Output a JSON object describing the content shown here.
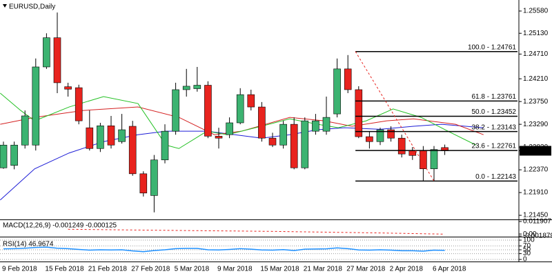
{
  "chart_data": [
    {
      "type": "candlestick",
      "title": "EURUSD,Daily",
      "categories": [
        "9 Feb 2018",
        null,
        null,
        null,
        "15 Feb 2018",
        null,
        null,
        null,
        "21 Feb 2018",
        null,
        null,
        null,
        "27 Feb 2018",
        null,
        null,
        null,
        "5 Mar 2018",
        null,
        null,
        null,
        "9 Mar 2018",
        null,
        null,
        null,
        "15 Mar 2018",
        null,
        null,
        null,
        "21 Mar 2018",
        null,
        null,
        null,
        "27 Mar 2018",
        null,
        null,
        null,
        "2 Apr 2018",
        null,
        null,
        null,
        "6 Apr 2018",
        null
      ],
      "open": [
        1.2241,
        1.2246,
        1.2287,
        1.2287,
        1.2445,
        1.2504,
        1.2405,
        1.2403,
        1.2322,
        1.228,
        1.2326,
        1.2294,
        1.2325,
        1.2229,
        1.2185,
        1.2257,
        1.2315,
        1.2399,
        1.2401,
        1.2408,
        1.2305,
        1.2308,
        1.2332,
        1.2389,
        1.2364,
        1.2301,
        1.2287,
        1.2329,
        1.2241,
        1.2315,
        1.2315,
        1.235,
        1.2441,
        1.2399,
        1.2304,
        1.2294,
        1.2318,
        1.2301,
        1.2276,
        1.2276,
        1.2239,
        1.2282
      ],
      "high": [
        1.2294,
        1.2294,
        1.2357,
        1.2462,
        1.2513,
        1.2555,
        1.2413,
        1.2409,
        1.2357,
        1.2332,
        1.2346,
        1.235,
        1.2336,
        1.2234,
        1.2267,
        1.2329,
        1.2413,
        1.2441,
        1.2445,
        1.2416,
        1.2322,
        1.2343,
        1.2402,
        1.2399,
        1.2374,
        1.2312,
        1.2336,
        1.2343,
        1.2343,
        1.235,
        1.2385,
        1.2462,
        1.2469,
        1.2406,
        1.2315,
        1.2322,
        1.2325,
        1.2308,
        1.2283,
        1.2285,
        1.2285,
        1.2288
      ],
      "low": [
        1.2239,
        1.2238,
        1.228,
        1.2276,
        1.2441,
        1.2392,
        1.2385,
        1.2329,
        1.2276,
        1.2273,
        1.228,
        1.229,
        1.2225,
        1.2183,
        1.2151,
        1.225,
        1.2308,
        1.2385,
        1.2395,
        1.2301,
        1.228,
        1.2301,
        1.2329,
        1.2357,
        1.2294,
        1.2283,
        1.228,
        1.2238,
        1.2238,
        1.2308,
        1.2308,
        1.2343,
        1.2392,
        1.2301,
        1.228,
        1.2287,
        1.2294,
        1.2262,
        1.2257,
        1.2215,
        1.2215,
        1.2267
      ],
      "close": [
        1.2287,
        1.2287,
        1.2346,
        1.2445,
        1.2504,
        1.2413,
        1.24,
        1.2336,
        1.228,
        1.2326,
        1.2287,
        1.2318,
        1.2229,
        1.219,
        1.2257,
        1.2315,
        1.2399,
        1.2406,
        1.2408,
        1.2305,
        1.2301,
        1.2332,
        1.2389,
        1.2364,
        1.2301,
        1.2287,
        1.2329,
        1.2241,
        1.2336,
        1.2336,
        1.2343,
        1.2441,
        1.2399,
        1.2304,
        1.2294,
        1.2318,
        1.2301,
        1.2269,
        1.2266,
        1.2239,
        1.2278,
        1.22755
      ],
      "up_color": "#3cb371",
      "down_color": "#e8231e",
      "ylim": [
        1.21367,
        1.25775
      ],
      "yticks": [
        {
          "value": 1.2558,
          "label": "1.25580"
        },
        {
          "value": 1.2513,
          "label": "1.25130"
        },
        {
          "value": 1.2471,
          "label": "1.24710"
        },
        {
          "value": 1.2421,
          "label": "1.24210"
        },
        {
          "value": 1.2375,
          "label": "1.23750"
        },
        {
          "value": 1.2329,
          "label": "1.23290"
        },
        {
          "value": 1.2283,
          "label": "1.22830"
        },
        {
          "value": 1.2237,
          "label": "1.22370"
        },
        {
          "value": 1.2191,
          "label": "1.21910"
        },
        {
          "value": 1.2145,
          "label": "1.21450"
        }
      ],
      "last_price": 1.22755,
      "overlays": [
        {
          "color": "#1c1cd6",
          "x": [
            -0.3,
            2.9,
            6.1,
            9.3,
            12.5,
            15.1,
            18.9,
            21.5,
            24.0,
            26.6,
            29.2,
            31.7,
            35.0,
            38.1,
            40.7,
            44.6
          ],
          "values": [
            1.2176,
            1.2239,
            1.2271,
            1.2294,
            1.2308,
            1.2315,
            1.2315,
            1.2308,
            1.2301,
            1.2308,
            1.2318,
            1.2322,
            1.2319,
            1.2325,
            1.2329,
            1.2322
          ]
        },
        {
          "color": "#d42020",
          "x": [
            -0.3,
            2.9,
            7.4,
            12.5,
            16.3,
            19.6,
            22.1,
            26.6,
            29.8,
            32.4,
            35.6,
            38.1,
            42.0,
            44.6
          ],
          "values": [
            1.2329,
            1.2343,
            1.2357,
            1.2364,
            1.2343,
            1.2308,
            1.2315,
            1.2343,
            1.2336,
            1.2325,
            1.2336,
            1.234,
            1.2329,
            1.2308
          ]
        },
        {
          "color": "#22c022",
          "x": [
            -0.3,
            1.6,
            2.9,
            6.1,
            9.3,
            12.5,
            15.1,
            16.3,
            18.9,
            20.8,
            23.4,
            26.6,
            29.2,
            31.1,
            33.7,
            36.2,
            38.8,
            41.3,
            43.9
          ],
          "values": [
            1.2392,
            1.2357,
            1.2336,
            1.2364,
            1.2385,
            1.2371,
            1.2287,
            1.228,
            1.2315,
            1.2308,
            1.2322,
            1.234,
            1.2329,
            1.2322,
            1.2336,
            1.236,
            1.2343,
            1.2315,
            1.2287
          ]
        }
      ],
      "fib_levels": [
        {
          "value": 1.24761,
          "label": "100.0 - 1.24761"
        },
        {
          "value": 1.23761,
          "label": "61.8 - 1.23761"
        },
        {
          "value": 1.23452,
          "label": "50.0 - 1.23452"
        },
        {
          "value": 1.23143,
          "label": "38.2 - 1.23143"
        },
        {
          "value": 1.22761,
          "label": "23.6 - 1.22761"
        },
        {
          "value": 1.22143,
          "label": "0.0 - 1.22143"
        }
      ],
      "fib_trend_color": "#e8231e"
    },
    {
      "type": "line",
      "title": "MACD(12,26,9) -0.001249 -0.000125",
      "ylim": [
        -0.001879,
        0.011907
      ],
      "yticks": [
        0.011907,
        {
          "value": 0,
          "label": "0.00"
        },
        -0.001879
      ],
      "color": "#e8231e",
      "x": [
        6,
        15,
        25,
        35,
        41
      ],
      "values": [
        0.0045,
        0.0035,
        0.0025,
        0.001,
        -0.000125
      ]
    },
    {
      "type": "line",
      "title": "RSI(14) 46.9674",
      "ylim": [
        0,
        100
      ],
      "yticks": [
        100,
        70,
        50,
        30,
        0
      ],
      "color": "#1e90ff",
      "values": [
        55,
        56,
        58,
        62,
        64,
        58,
        56,
        52,
        48,
        50,
        49,
        50,
        44,
        40,
        46,
        50,
        56,
        57,
        57,
        50,
        49,
        52,
        56,
        53,
        49,
        48,
        51,
        46,
        53,
        54,
        55,
        60,
        56,
        49,
        48,
        50,
        48,
        45,
        45,
        43,
        48,
        46.9674
      ]
    }
  ]
}
